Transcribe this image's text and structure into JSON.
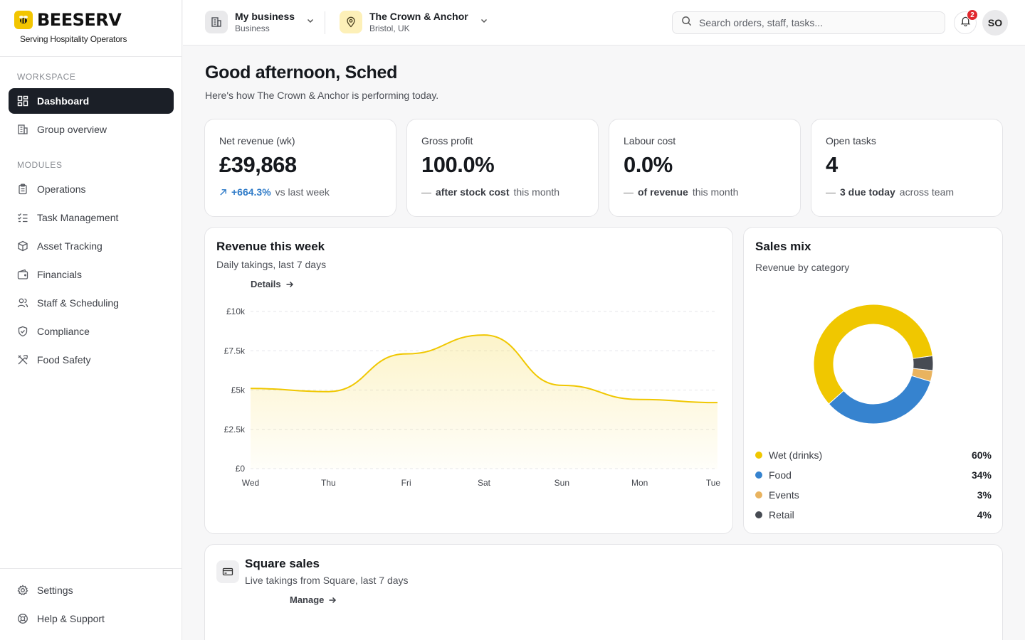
{
  "brand": {
    "name": "BEESERV",
    "tagline": "Serving Hospitality Operators",
    "accent": "#f2c500"
  },
  "sidebar": {
    "workspace_label": "WORKSPACE",
    "modules_label": "MODULES",
    "workspace": [
      {
        "label": "Dashboard",
        "icon": "dashboard-grid-icon",
        "active": true
      },
      {
        "label": "Group overview",
        "icon": "building-icon"
      }
    ],
    "modules": [
      {
        "label": "Operations",
        "icon": "clipboard-icon"
      },
      {
        "label": "Task Management",
        "icon": "checklist-icon"
      },
      {
        "label": "Asset Tracking",
        "icon": "box-icon"
      },
      {
        "label": "Financials",
        "icon": "wallet-icon"
      },
      {
        "label": "Staff & Scheduling",
        "icon": "users-icon"
      },
      {
        "label": "Compliance",
        "icon": "shield-check-icon"
      },
      {
        "label": "Food Safety",
        "icon": "utensils-icon"
      }
    ],
    "bottom": [
      {
        "label": "Settings",
        "icon": "gear-icon"
      },
      {
        "label": "Help & Support",
        "icon": "lifebuoy-icon"
      }
    ]
  },
  "header": {
    "business": {
      "title": "My business",
      "subtitle": "Business"
    },
    "venue": {
      "title": "The Crown & Anchor",
      "subtitle": "Bristol, UK"
    },
    "search_placeholder": "Search orders, staff, tasks...",
    "notifications_count": "2",
    "avatar_initials": "SO"
  },
  "main": {
    "greeting": "Good afternoon, Sched",
    "subtitle": "Here's how The Crown & Anchor is performing today.",
    "kpis": [
      {
        "label": "Net revenue (wk)",
        "value": "£39,868",
        "delta": "+664.3%",
        "note": "vs last week"
      },
      {
        "label": "Gross profit",
        "value": "100.0%",
        "strong": "after stock cost",
        "note": "this month"
      },
      {
        "label": "Labour cost",
        "value": "0.0%",
        "strong": "of revenue",
        "note": "this month"
      },
      {
        "label": "Open tasks",
        "value": "4",
        "strong": "3 due today",
        "note": "across team"
      }
    ],
    "revenue_card": {
      "title": "Revenue this week",
      "subtitle": "Daily takings, last 7 days",
      "link": "Details"
    },
    "mix_card": {
      "title": "Sales mix",
      "subtitle": "Revenue by category"
    },
    "square_card": {
      "title": "Square sales",
      "subtitle": "Live takings from Square, last 7 days",
      "link": "Manage"
    }
  },
  "chart_data": [
    {
      "type": "area",
      "title": "Revenue this week",
      "categories": [
        "Wed",
        "Thu",
        "Fri",
        "Sat",
        "Sun",
        "Mon",
        "Tue"
      ],
      "values": [
        5100,
        4900,
        7300,
        8500,
        5300,
        4400,
        4200
      ],
      "ylim": [
        0,
        10000
      ],
      "yticks": [
        "£0",
        "£2.5k",
        "£5k",
        "£7.5k",
        "£10k"
      ],
      "color": "#f0c700",
      "grid": true
    },
    {
      "type": "pie",
      "title": "Sales mix",
      "labels": [
        "Wet (drinks)",
        "Food",
        "Events",
        "Retail"
      ],
      "values": [
        60,
        34,
        3,
        4
      ],
      "display": [
        "60%",
        "34%",
        "3%",
        "4%"
      ],
      "colors": [
        "#f0c700",
        "#3683cf",
        "#e9b35f",
        "#474b53"
      ]
    }
  ]
}
